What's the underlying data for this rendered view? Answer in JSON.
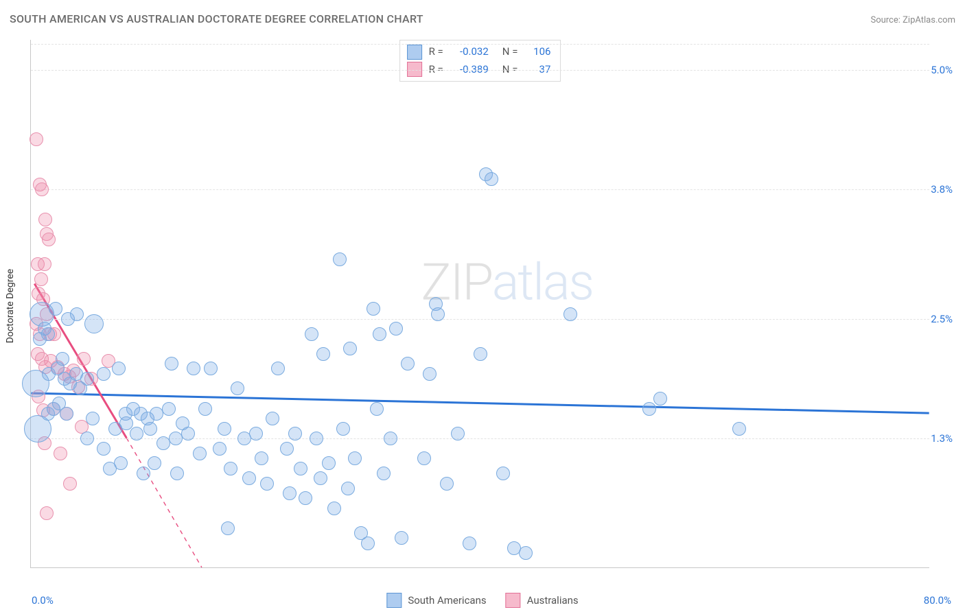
{
  "title": "SOUTH AMERICAN VS AUSTRALIAN DOCTORATE DEGREE CORRELATION CHART",
  "source_label": "Source: ZipAtlas.com",
  "y_axis_title": "Doctorate Degree",
  "chart": {
    "type": "scatter",
    "xlim": [
      0,
      80
    ],
    "ylim": [
      0,
      5.3
    ],
    "x_ticks": [
      {
        "value": 0,
        "label": "0.0%",
        "color": "#2b74d6"
      },
      {
        "value": 80,
        "label": "80.0%",
        "color": "#2b74d6"
      }
    ],
    "y_ticks": [
      {
        "value": 1.3,
        "label": "1.3%",
        "color": "#2b74d6"
      },
      {
        "value": 2.5,
        "label": "2.5%",
        "color": "#2b74d6"
      },
      {
        "value": 3.8,
        "label": "3.8%",
        "color": "#2b74d6"
      },
      {
        "value": 5.0,
        "label": "5.0%",
        "color": "#2b74d6"
      }
    ],
    "grid_values_y": [
      1.3,
      2.5,
      3.8,
      5.0,
      0.1
    ],
    "background_color": "#ffffff",
    "grid_color": "#e3e3e3",
    "axis_color": "#c7c7c7"
  },
  "series": {
    "south_americans": {
      "label": "South Americans",
      "fill": "rgba(120,170,230,0.32)",
      "stroke": "#79aadf",
      "swatch_fill": "rgba(120,170,230,0.6)",
      "swatch_stroke": "#5c95d4",
      "marker_radius": 10,
      "trend": {
        "x1": 0,
        "y1": 1.75,
        "x2": 80,
        "y2": 1.55,
        "color": "#2b74d6",
        "width": 3,
        "dash": "none"
      },
      "R": "-0.032",
      "N": "106",
      "points": [
        {
          "x": 1.0,
          "y": 2.55,
          "r": 18
        },
        {
          "x": 0.4,
          "y": 1.85,
          "r": 20
        },
        {
          "x": 0.6,
          "y": 1.4,
          "r": 20
        },
        {
          "x": 0.8,
          "y": 2.3
        },
        {
          "x": 1.2,
          "y": 2.4
        },
        {
          "x": 1.5,
          "y": 2.35
        },
        {
          "x": 2.2,
          "y": 2.6
        },
        {
          "x": 3.3,
          "y": 2.5
        },
        {
          "x": 4.1,
          "y": 2.55
        },
        {
          "x": 5.6,
          "y": 2.45,
          "r": 14
        },
        {
          "x": 1.6,
          "y": 1.95
        },
        {
          "x": 2.4,
          "y": 2.0
        },
        {
          "x": 2.8,
          "y": 2.1
        },
        {
          "x": 3.0,
          "y": 1.9
        },
        {
          "x": 3.5,
          "y": 1.85
        },
        {
          "x": 4.0,
          "y": 1.95
        },
        {
          "x": 4.4,
          "y": 1.8
        },
        {
          "x": 5.0,
          "y": 1.9
        },
        {
          "x": 6.5,
          "y": 1.95
        },
        {
          "x": 7.8,
          "y": 2.0
        },
        {
          "x": 8.4,
          "y": 1.55
        },
        {
          "x": 8.5,
          "y": 1.45
        },
        {
          "x": 9.1,
          "y": 1.6
        },
        {
          "x": 9.8,
          "y": 1.55
        },
        {
          "x": 9.4,
          "y": 1.35
        },
        {
          "x": 10.4,
          "y": 1.5
        },
        {
          "x": 10.6,
          "y": 1.4
        },
        {
          "x": 11.2,
          "y": 1.55
        },
        {
          "x": 11.8,
          "y": 1.25
        },
        {
          "x": 12.3,
          "y": 1.6
        },
        {
          "x": 12.9,
          "y": 1.3
        },
        {
          "x": 13.5,
          "y": 1.45
        },
        {
          "x": 14.0,
          "y": 1.35
        },
        {
          "x": 14.5,
          "y": 2.0
        },
        {
          "x": 15.0,
          "y": 1.15
        },
        {
          "x": 15.5,
          "y": 1.6
        },
        {
          "x": 16.0,
          "y": 2.0
        },
        {
          "x": 16.8,
          "y": 1.2
        },
        {
          "x": 17.2,
          "y": 1.4
        },
        {
          "x": 17.8,
          "y": 1.0
        },
        {
          "x": 18.4,
          "y": 1.8
        },
        {
          "x": 19.0,
          "y": 1.3
        },
        {
          "x": 19.4,
          "y": 0.9
        },
        {
          "x": 20.0,
          "y": 1.35
        },
        {
          "x": 20.5,
          "y": 1.1
        },
        {
          "x": 21.0,
          "y": 0.85
        },
        {
          "x": 21.5,
          "y": 1.5
        },
        {
          "x": 22.0,
          "y": 2.0
        },
        {
          "x": 22.8,
          "y": 1.2
        },
        {
          "x": 23.0,
          "y": 0.75
        },
        {
          "x": 23.5,
          "y": 1.35
        },
        {
          "x": 24.0,
          "y": 1.0
        },
        {
          "x": 24.4,
          "y": 0.7
        },
        {
          "x": 25.0,
          "y": 2.35
        },
        {
          "x": 25.4,
          "y": 1.3
        },
        {
          "x": 25.8,
          "y": 0.9
        },
        {
          "x": 26.0,
          "y": 2.15
        },
        {
          "x": 26.5,
          "y": 1.05
        },
        {
          "x": 27.0,
          "y": 0.6
        },
        {
          "x": 27.5,
          "y": 3.1
        },
        {
          "x": 27.8,
          "y": 1.4
        },
        {
          "x": 28.2,
          "y": 0.8
        },
        {
          "x": 28.4,
          "y": 2.2
        },
        {
          "x": 28.8,
          "y": 1.1
        },
        {
          "x": 29.4,
          "y": 0.35
        },
        {
          "x": 30.0,
          "y": 0.25
        },
        {
          "x": 30.5,
          "y": 2.6
        },
        {
          "x": 30.8,
          "y": 1.6
        },
        {
          "x": 31.0,
          "y": 2.35
        },
        {
          "x": 31.4,
          "y": 0.95
        },
        {
          "x": 32.0,
          "y": 1.3
        },
        {
          "x": 32.5,
          "y": 2.4
        },
        {
          "x": 33.0,
          "y": 0.3
        },
        {
          "x": 33.5,
          "y": 2.05
        },
        {
          "x": 35.0,
          "y": 1.1
        },
        {
          "x": 35.5,
          "y": 1.95
        },
        {
          "x": 36.0,
          "y": 2.65
        },
        {
          "x": 36.2,
          "y": 2.55
        },
        {
          "x": 37.0,
          "y": 0.85
        },
        {
          "x": 38.0,
          "y": 1.35
        },
        {
          "x": 39.0,
          "y": 0.25
        },
        {
          "x": 40.0,
          "y": 2.15
        },
        {
          "x": 40.5,
          "y": 3.95
        },
        {
          "x": 41.0,
          "y": 3.9
        },
        {
          "x": 42.0,
          "y": 0.95
        },
        {
          "x": 43.0,
          "y": 0.2
        },
        {
          "x": 44.0,
          "y": 0.15
        },
        {
          "x": 48.0,
          "y": 2.55
        },
        {
          "x": 55.0,
          "y": 1.6
        },
        {
          "x": 56.0,
          "y": 1.7
        },
        {
          "x": 63.0,
          "y": 1.4
        },
        {
          "x": 17.5,
          "y": 0.4
        },
        {
          "x": 6.5,
          "y": 1.2
        },
        {
          "x": 7.0,
          "y": 1.0
        },
        {
          "x": 7.5,
          "y": 1.4
        },
        {
          "x": 11.0,
          "y": 1.05
        },
        {
          "x": 13.0,
          "y": 0.95
        },
        {
          "x": 5.0,
          "y": 1.3
        },
        {
          "x": 5.5,
          "y": 1.5
        },
        {
          "x": 8.0,
          "y": 1.05
        },
        {
          "x": 10.0,
          "y": 0.95
        },
        {
          "x": 12.5,
          "y": 2.05
        },
        {
          "x": 1.5,
          "y": 1.55
        },
        {
          "x": 2.0,
          "y": 1.6
        },
        {
          "x": 2.5,
          "y": 1.65
        },
        {
          "x": 3.2,
          "y": 1.55
        }
      ]
    },
    "australians": {
      "label": "Australians",
      "fill": "rgba(240,140,170,0.32)",
      "stroke": "#e890ad",
      "swatch_fill": "rgba(240,140,170,0.6)",
      "swatch_stroke": "#e27096",
      "marker_radius": 10,
      "trend_solid": {
        "x1": 0.3,
        "y1": 2.85,
        "x2": 8.5,
        "y2": 1.3,
        "color": "#e84d80",
        "width": 3
      },
      "trend_dash": {
        "x1": 8.5,
        "y1": 1.3,
        "x2": 15.2,
        "y2": 0.0,
        "color": "#e84d80",
        "width": 1.4
      },
      "R": "-0.389",
      "N": "37",
      "points": [
        {
          "x": 0.5,
          "y": 4.3
        },
        {
          "x": 0.8,
          "y": 3.85
        },
        {
          "x": 1.0,
          "y": 3.8
        },
        {
          "x": 1.3,
          "y": 3.5
        },
        {
          "x": 1.4,
          "y": 3.35
        },
        {
          "x": 1.6,
          "y": 3.3
        },
        {
          "x": 0.6,
          "y": 3.05
        },
        {
          "x": 1.2,
          "y": 3.05
        },
        {
          "x": 0.9,
          "y": 2.9
        },
        {
          "x": 0.7,
          "y": 2.75
        },
        {
          "x": 1.1,
          "y": 2.7
        },
        {
          "x": 1.4,
          "y": 2.55
        },
        {
          "x": 0.5,
          "y": 2.45
        },
        {
          "x": 0.8,
          "y": 2.35
        },
        {
          "x": 1.7,
          "y": 2.35
        },
        {
          "x": 2.1,
          "y": 2.35
        },
        {
          "x": 0.6,
          "y": 2.15
        },
        {
          "x": 1.0,
          "y": 2.1
        },
        {
          "x": 1.3,
          "y": 2.02
        },
        {
          "x": 1.8,
          "y": 2.08
        },
        {
          "x": 2.4,
          "y": 2.02
        },
        {
          "x": 3.0,
          "y": 1.95
        },
        {
          "x": 3.4,
          "y": 1.92
        },
        {
          "x": 3.8,
          "y": 1.98
        },
        {
          "x": 4.2,
          "y": 1.82
        },
        {
          "x": 4.7,
          "y": 2.1
        },
        {
          "x": 5.4,
          "y": 1.9
        },
        {
          "x": 6.9,
          "y": 2.08
        },
        {
          "x": 0.7,
          "y": 1.72
        },
        {
          "x": 1.1,
          "y": 1.58
        },
        {
          "x": 2.0,
          "y": 1.6
        },
        {
          "x": 3.2,
          "y": 1.55
        },
        {
          "x": 4.5,
          "y": 1.42
        },
        {
          "x": 1.2,
          "y": 1.25
        },
        {
          "x": 2.6,
          "y": 1.15
        },
        {
          "x": 3.5,
          "y": 0.85
        },
        {
          "x": 1.4,
          "y": 0.55
        }
      ]
    }
  },
  "stats_box": {
    "rows": [
      {
        "swatch": "south_americans",
        "R_label": "R =",
        "N_label": "N ="
      },
      {
        "swatch": "australians",
        "R_label": "R =",
        "N_label": "N ="
      }
    ],
    "value_color": "#2b74d6"
  },
  "watermark": {
    "part1": "ZIP",
    "part2": "atlas"
  }
}
